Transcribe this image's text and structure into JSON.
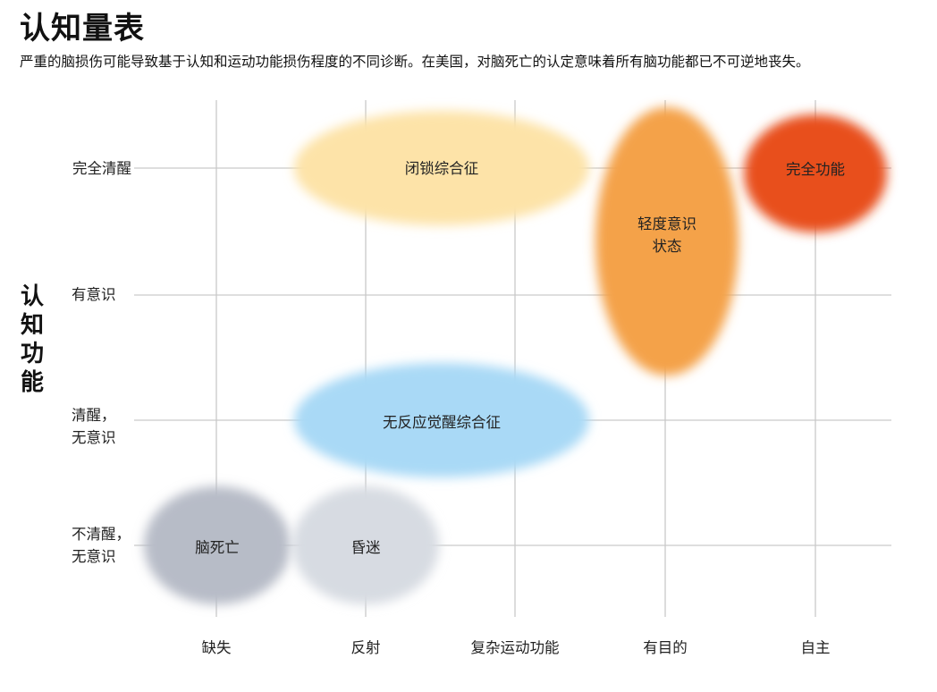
{
  "title": "认知量表",
  "subtitle": "严重的脑损伤可能导致基于认知和运动功能损伤程度的不同诊断。在美国，对脑死亡的认定意味着所有脑功能都已不可逆地丧失。",
  "y_axis_title": "认知功能",
  "y_levels": [
    [
      "完全清醒"
    ],
    [
      "有意识"
    ],
    [
      "清醒，",
      "无意识"
    ],
    [
      "不清醒，",
      "无意识"
    ]
  ],
  "x_levels": [
    "缺失",
    "反射",
    "复杂运动功能",
    "有目的",
    "自主"
  ],
  "conditions": [
    {
      "id": "locked-in",
      "lines": [
        "闭锁综合征"
      ],
      "color": "#fde3a8"
    },
    {
      "id": "full-function",
      "lines": [
        "完全功能"
      ],
      "color": "#e8501e"
    },
    {
      "id": "minimally-conscious",
      "lines": [
        "轻度意识",
        "状态"
      ],
      "color": "#f4a24a"
    },
    {
      "id": "unresponsive-wakefulness",
      "lines": [
        "无反应觉醒综合征"
      ],
      "color": "#a9d9f6"
    },
    {
      "id": "brain-death",
      "lines": [
        "脑死亡"
      ],
      "color": "#b7bcc7"
    },
    {
      "id": "coma",
      "lines": [
        "昏迷"
      ],
      "color": "#d7dbe2"
    }
  ]
}
